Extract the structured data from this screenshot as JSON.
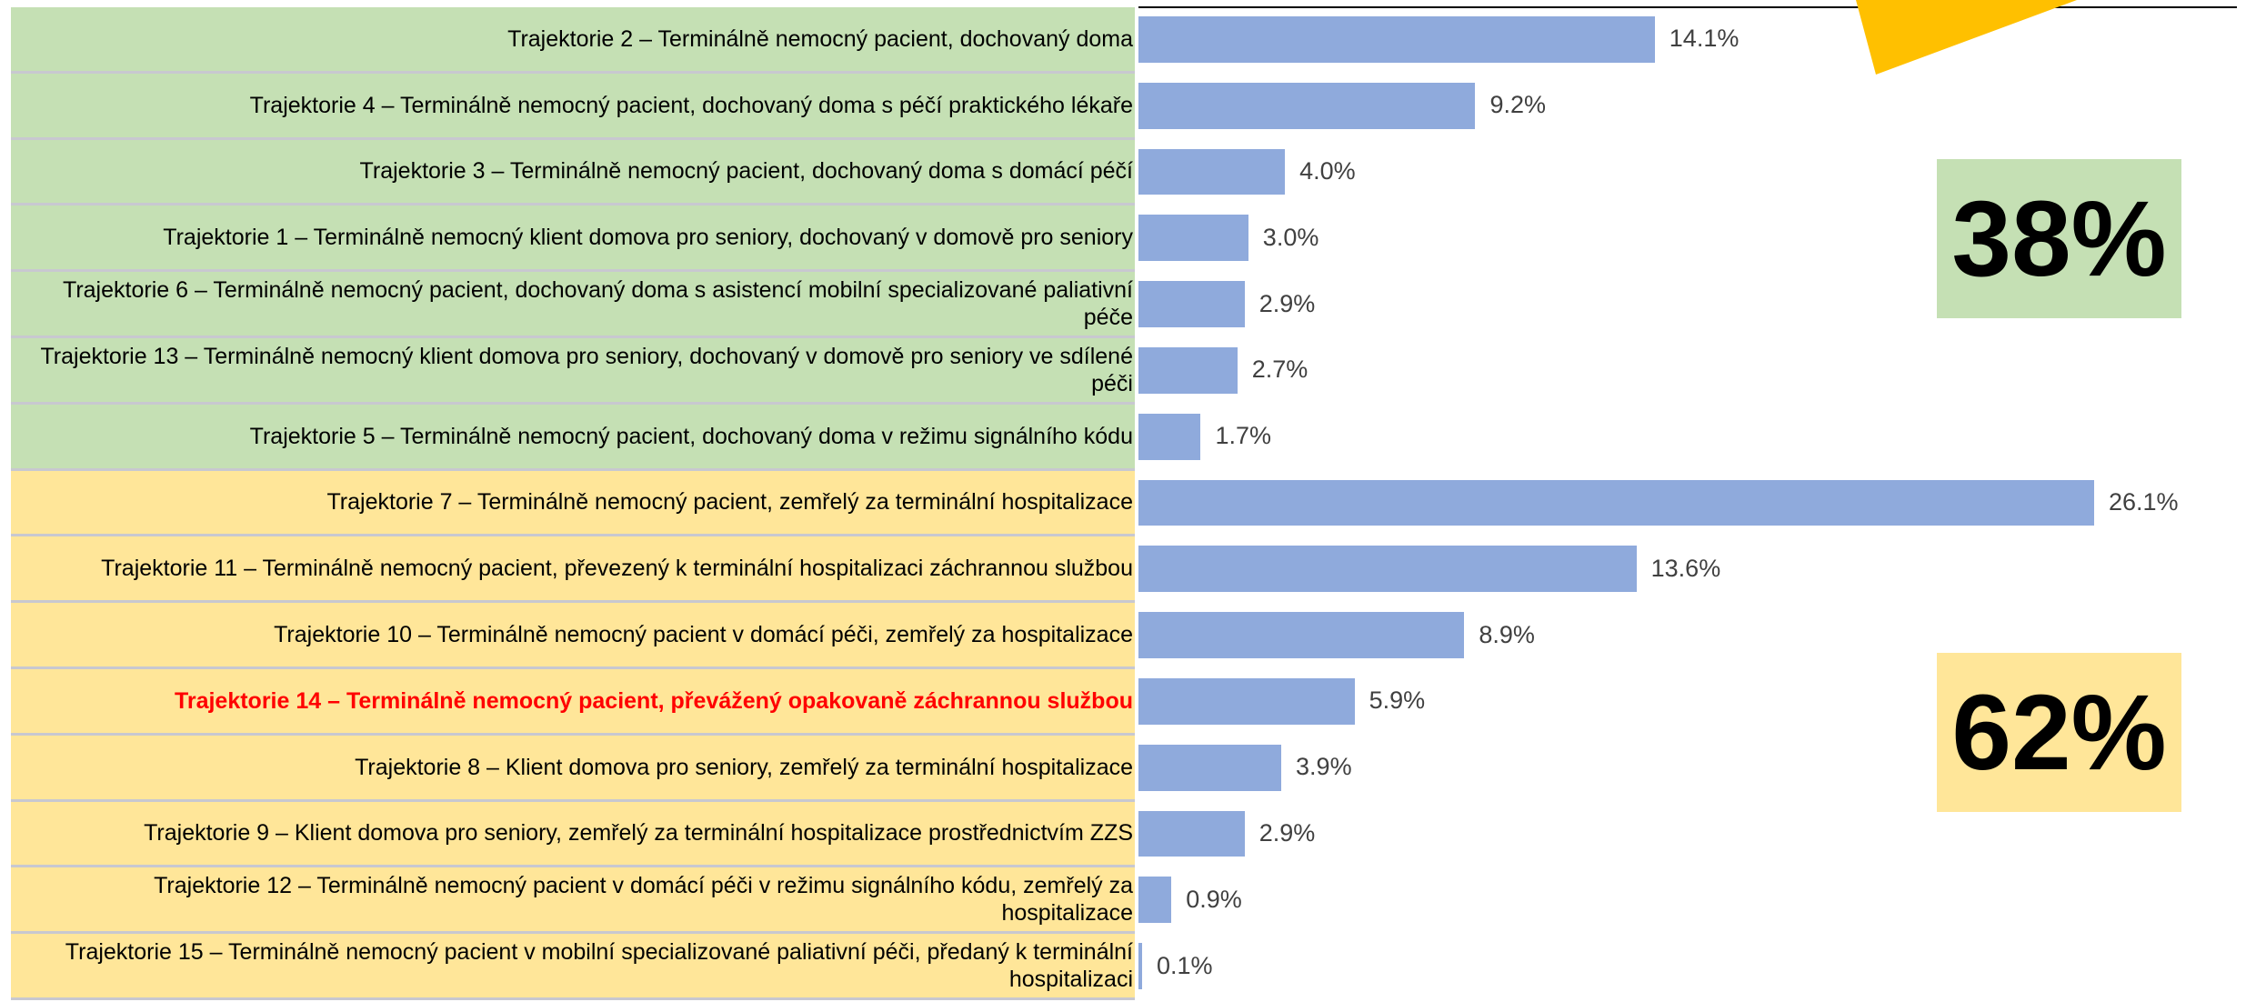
{
  "chart_data": {
    "type": "bar",
    "orientation": "horizontal",
    "categories": [
      "Trajektorie 2 – Terminálně nemocný pacient, dochovaný doma",
      "Trajektorie 4 – Terminálně nemocný pacient, dochovaný doma s péčí praktického lékaře",
      "Trajektorie 3 – Terminálně nemocný pacient, dochovaný doma s domácí péčí",
      "Trajektorie 1 – Terminálně nemocný klient domova pro seniory, dochovaný v domově pro seniory",
      "Trajektorie 6 – Terminálně nemocný pacient, dochovaný doma s asistencí mobilní specializované paliativní péče",
      "Trajektorie 13 – Terminálně nemocný klient domova pro seniory, dochovaný v domově pro seniory ve sdílené péči",
      "Trajektorie 5 – Terminálně nemocný pacient, dochovaný doma v režimu signálního kódu",
      "Trajektorie 7 – Terminálně nemocný pacient, zemřelý za terminální hospitalizace",
      "Trajektorie 11 – Terminálně nemocný pacient, převezený k terminální hospitalizaci záchrannou službou",
      "Trajektorie 10 – Terminálně nemocný pacient v domácí péči, zemřelý za hospitalizace",
      "Trajektorie 14 – Terminálně nemocný pacient, převážený opakovaně záchrannou službou",
      "Trajektorie 8 – Klient domova pro seniory, zemřelý za terminální hospitalizace",
      "Trajektorie 9 – Klient domova pro seniory, zemřelý za terminální hospitalizace prostřednictvím ZZS",
      "Trajektorie 12 – Terminálně nemocný pacient v domácí péči v režimu signálního kódu, zemřelý za hospitalizace",
      "Trajektorie 15 – Terminálně nemocný pacient v mobilní specializované paliativní péči, předaný k terminální hospitalizaci"
    ],
    "values": [
      14.1,
      9.2,
      4.0,
      3.0,
      2.9,
      2.7,
      1.7,
      26.1,
      13.6,
      8.9,
      5.9,
      3.9,
      2.9,
      0.9,
      0.1
    ],
    "value_labels": [
      "14.1%",
      "9.2%",
      "4.0%",
      "3.0%",
      "2.9%",
      "2.7%",
      "1.7%",
      "26.1%",
      "13.6%",
      "8.9%",
      "5.9%",
      "3.9%",
      "2.9%",
      "0.9%",
      "0.1%"
    ],
    "color": "#8faadc",
    "row_colors": [
      "#c5e0b4",
      "#c5e0b4",
      "#c5e0b4",
      "#c5e0b4",
      "#c5e0b4",
      "#c5e0b4",
      "#c5e0b4",
      "#ffe699",
      "#ffe699",
      "#ffe699",
      "#ffe699",
      "#ffe699",
      "#ffe699",
      "#ffe699",
      "#ffe699"
    ],
    "label_colors": [
      "#000000",
      "#000000",
      "#000000",
      "#000000",
      "#000000",
      "#000000",
      "#000000",
      "#000000",
      "#000000",
      "#000000",
      "#ff0000",
      "#000000",
      "#000000",
      "#000000",
      "#000000"
    ],
    "annotations": [
      {
        "text": "38%",
        "color": "#c5e0b4"
      },
      {
        "text": "62%",
        "color": "#ffe699"
      }
    ]
  }
}
